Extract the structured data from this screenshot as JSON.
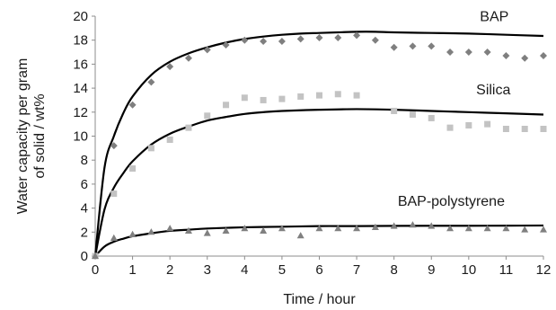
{
  "chart_data": {
    "type": "scatter",
    "xlabel": "Time / hour",
    "ylabel": [
      "Water capacity per gram",
      "of solid / wt%"
    ],
    "xlim": [
      0,
      12
    ],
    "ylim": [
      0,
      20
    ],
    "xticks": [
      0,
      1,
      2,
      3,
      4,
      5,
      6,
      7,
      8,
      9,
      10,
      11,
      12
    ],
    "yticks": [
      0,
      2,
      4,
      6,
      8,
      10,
      12,
      14,
      16,
      18,
      20
    ],
    "grid": false,
    "legend": "none",
    "series": [
      {
        "name": "BAP",
        "marker": "diamond",
        "color": "#7f7f7f",
        "x": [
          0,
          0.5,
          1,
          1.5,
          2,
          2.5,
          3,
          3.5,
          4,
          4.5,
          5,
          5.5,
          6,
          6.5,
          7,
          7.5,
          8,
          8.5,
          9,
          9.5,
          10,
          10.5,
          11,
          11.5,
          12
        ],
        "y": [
          0,
          9.2,
          12.6,
          14.5,
          15.8,
          16.5,
          17.2,
          17.6,
          18.0,
          17.9,
          17.9,
          18.1,
          18.2,
          18.2,
          18.4,
          18.0,
          17.4,
          17.5,
          17.5,
          17.0,
          17.0,
          17.0,
          16.7,
          16.5,
          16.7
        ],
        "fit": [
          [
            0,
            0
          ],
          [
            0.25,
            7.4
          ],
          [
            0.5,
            10.0
          ],
          [
            0.75,
            11.9
          ],
          [
            1,
            13.3
          ],
          [
            1.5,
            15.1
          ],
          [
            2,
            16.2
          ],
          [
            2.5,
            16.9
          ],
          [
            3,
            17.4
          ],
          [
            3.5,
            17.8
          ],
          [
            4,
            18.1
          ],
          [
            4.5,
            18.3
          ],
          [
            5,
            18.45
          ],
          [
            5.5,
            18.55
          ],
          [
            6,
            18.6
          ],
          [
            6.5,
            18.65
          ],
          [
            7,
            18.7
          ],
          [
            7.5,
            18.7
          ],
          [
            8,
            18.65
          ],
          [
            9,
            18.6
          ],
          [
            10,
            18.55
          ],
          [
            11,
            18.45
          ],
          [
            12,
            18.35
          ]
        ]
      },
      {
        "name": "Silica",
        "marker": "square",
        "color": "#c3c3c3",
        "x": [
          0,
          0.5,
          1,
          1.5,
          2,
          2.5,
          3,
          3.5,
          4,
          4.5,
          5,
          5.5,
          6,
          6.5,
          7,
          8,
          8.5,
          9,
          9.5,
          10,
          10.5,
          11,
          11.5,
          12
        ],
        "y": [
          0,
          5.2,
          7.3,
          9.0,
          9.7,
          10.7,
          11.7,
          12.6,
          13.2,
          13.0,
          13.1,
          13.3,
          13.4,
          13.5,
          13.4,
          12.1,
          11.8,
          11.5,
          10.7,
          10.9,
          11.0,
          10.6,
          10.6,
          10.6
        ],
        "fit": [
          [
            0,
            0
          ],
          [
            0.25,
            3.9
          ],
          [
            0.5,
            5.7
          ],
          [
            0.75,
            6.9
          ],
          [
            1,
            7.9
          ],
          [
            1.5,
            9.3
          ],
          [
            2,
            10.2
          ],
          [
            2.5,
            10.8
          ],
          [
            3,
            11.3
          ],
          [
            3.5,
            11.6
          ],
          [
            4,
            11.85
          ],
          [
            4.5,
            12.0
          ],
          [
            5,
            12.1
          ],
          [
            6,
            12.2
          ],
          [
            7,
            12.25
          ],
          [
            8,
            12.2
          ],
          [
            9,
            12.1
          ],
          [
            10,
            12.0
          ],
          [
            11,
            11.9
          ],
          [
            12,
            11.8
          ]
        ]
      },
      {
        "name": "BAP-polystyrene",
        "marker": "triangle",
        "color": "#808080",
        "x": [
          0,
          0.5,
          1,
          1.5,
          2,
          2.5,
          3,
          3.5,
          4,
          4.5,
          5,
          5.5,
          6,
          6.5,
          7,
          7.5,
          8,
          8.5,
          9,
          9.5,
          10,
          10.5,
          11,
          11.5,
          12
        ],
        "y": [
          0,
          1.5,
          1.8,
          2.0,
          2.3,
          2.1,
          1.9,
          2.1,
          2.3,
          2.1,
          2.3,
          1.7,
          2.3,
          2.3,
          2.3,
          2.4,
          2.5,
          2.6,
          2.5,
          2.3,
          2.3,
          2.3,
          2.3,
          2.2,
          2.2
        ],
        "fit": [
          [
            0,
            0
          ],
          [
            0.25,
            0.8
          ],
          [
            0.5,
            1.2
          ],
          [
            0.75,
            1.45
          ],
          [
            1,
            1.65
          ],
          [
            1.5,
            1.9
          ],
          [
            2,
            2.1
          ],
          [
            2.5,
            2.2
          ],
          [
            3,
            2.3
          ],
          [
            4,
            2.4
          ],
          [
            5,
            2.45
          ],
          [
            6,
            2.5
          ],
          [
            7,
            2.5
          ],
          [
            8,
            2.52
          ],
          [
            9,
            2.53
          ],
          [
            10,
            2.53
          ],
          [
            11,
            2.54
          ],
          [
            12,
            2.55
          ]
        ]
      }
    ],
    "annotations": [
      {
        "text": "BAP",
        "x": 10.3,
        "y": 19.6
      },
      {
        "text": "Silica",
        "x": 10.2,
        "y": 13.5
      },
      {
        "text": "BAP-polystyrene",
        "x": 8.1,
        "y": 4.2
      }
    ]
  }
}
